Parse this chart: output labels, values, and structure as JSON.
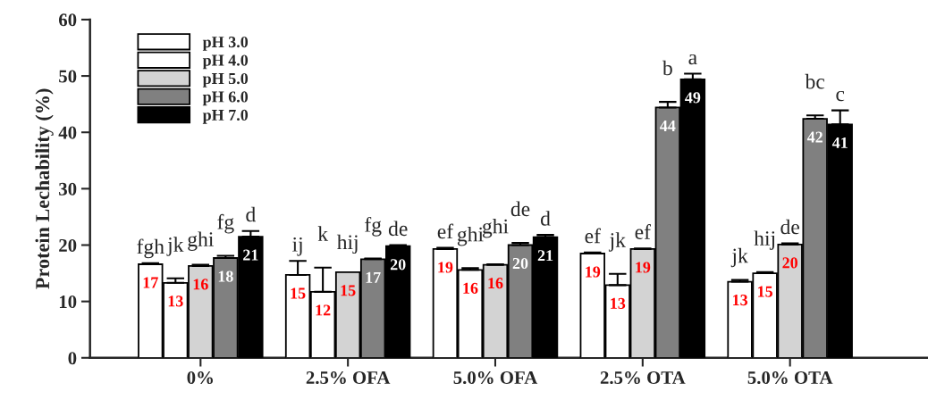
{
  "chart_data": {
    "type": "bar",
    "ylabel": "Protein Lechability (%)",
    "categories": [
      "0%",
      "2.5% OFA",
      "5.0% OFA",
      "2.5% OTA",
      "5.0% OTA"
    ],
    "series": [
      {
        "name": "pH 3.0",
        "color": "#ffffff",
        "values": [
          16.6,
          14.7,
          19.3,
          18.5,
          13.5
        ],
        "errors": [
          [
            16.6,
            16.8
          ],
          [
            14.7,
            17.2
          ],
          [
            19.3,
            19.5
          ],
          [
            18.5,
            18.7
          ],
          [
            13.5,
            13.8
          ]
        ],
        "value_labels": [
          "17",
          "15",
          "19",
          "19",
          "13"
        ]
      },
      {
        "name": "pH 4.0",
        "color": "#ffffff",
        "values": [
          13.3,
          11.7,
          15.6,
          12.9,
          15.0
        ],
        "errors": [
          [
            13.3,
            14.1
          ],
          [
            11.7,
            16.0
          ],
          [
            15.6,
            15.9
          ],
          [
            12.9,
            14.9
          ],
          [
            15.0,
            15.2
          ]
        ],
        "value_labels": [
          "13",
          "12",
          "16",
          "13",
          "15"
        ]
      },
      {
        "name": "pH 5.0",
        "color": "#d3d3d3",
        "values": [
          16.3,
          15.2,
          16.5,
          19.3,
          20.1
        ],
        "errors": [
          [
            16.3,
            16.5
          ],
          null,
          [
            16.5,
            16.6
          ],
          [
            19.3,
            19.4
          ],
          [
            20.1,
            20.3
          ]
        ],
        "value_labels": [
          "16",
          "15",
          "16",
          "19",
          "20"
        ]
      },
      {
        "name": "pH 6.0",
        "color": "#808080",
        "values": [
          17.7,
          17.5,
          20.0,
          44.4,
          42.4
        ],
        "errors": [
          [
            17.7,
            18.1
          ],
          [
            17.5,
            17.6
          ],
          [
            20.0,
            20.4
          ],
          [
            44.4,
            45.4
          ],
          [
            42.4,
            43.0
          ]
        ],
        "value_labels": [
          "18",
          "17",
          "20",
          "44",
          "42"
        ]
      },
      {
        "name": "pH 7.0",
        "color": "#000000",
        "values": [
          21.5,
          19.8,
          21.4,
          49.4,
          41.4
        ],
        "errors": [
          [
            21.5,
            22.5
          ],
          [
            19.8,
            20.0
          ],
          [
            21.4,
            21.8
          ],
          [
            49.4,
            50.4
          ],
          [
            41.4,
            43.9
          ]
        ],
        "value_labels": [
          "21",
          "20",
          "21",
          "49",
          "41"
        ]
      }
    ],
    "annotations": [
      "fgh",
      "jk",
      "ghi",
      "fg",
      "d",
      "ij",
      "k",
      "hij",
      "fg",
      "de",
      "ef",
      "ghi",
      "ghi",
      "de",
      "d",
      "ef",
      "jk",
      "ef",
      "b",
      "a",
      "jk",
      "hij",
      "de",
      "bc",
      "c"
    ],
    "ylim": [
      0,
      60
    ],
    "yticks": [
      0,
      10,
      20,
      30,
      40,
      50,
      60
    ],
    "grid": false,
    "legend": "top left"
  }
}
